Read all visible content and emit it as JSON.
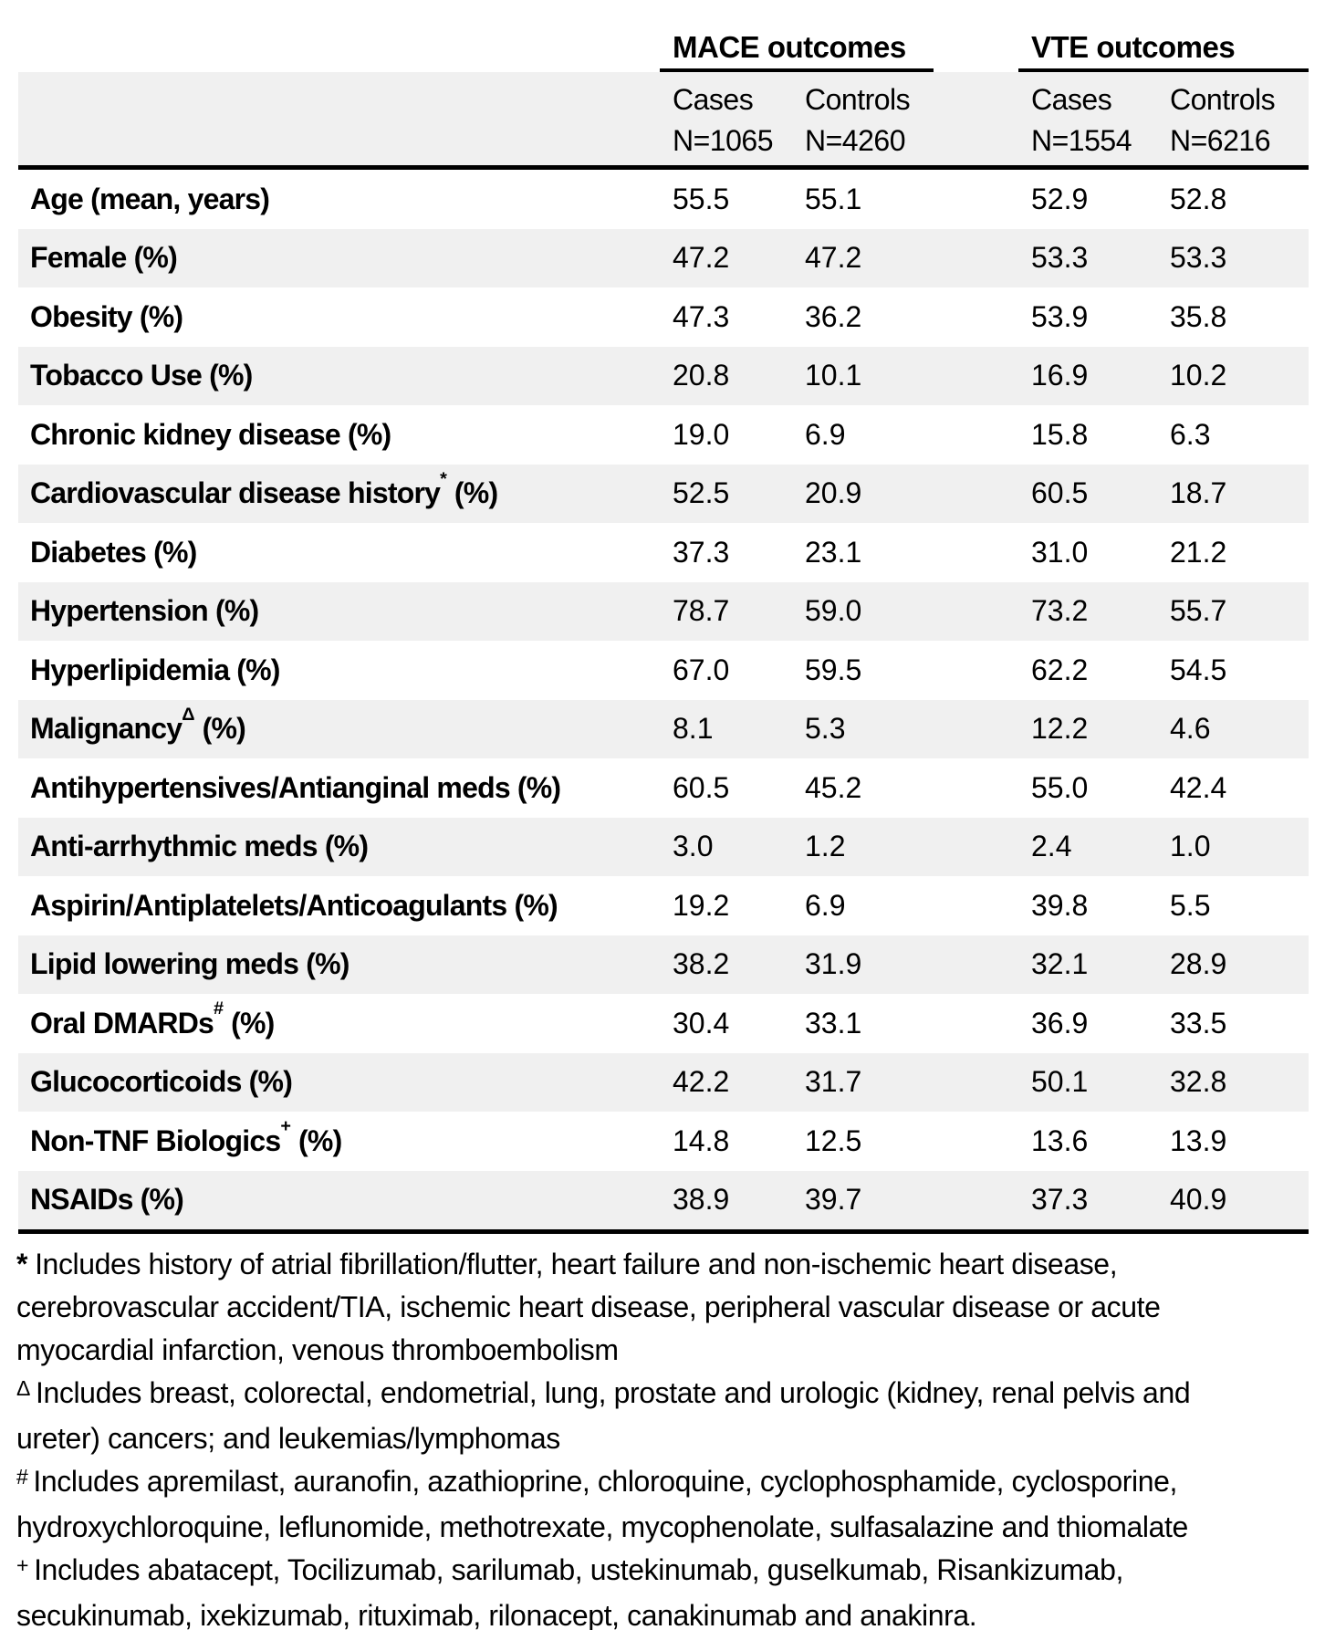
{
  "table": {
    "column_groups": [
      {
        "label": "MACE outcomes",
        "columns": [
          {
            "label": "Cases",
            "n": "N=1065"
          },
          {
            "label": "Controls",
            "n": "N=4260"
          }
        ]
      },
      {
        "label": "VTE outcomes",
        "columns": [
          {
            "label": "Cases",
            "n": "N=1554"
          },
          {
            "label": "Controls",
            "n": "N=6216"
          }
        ]
      }
    ],
    "rows": [
      {
        "label": "Age (mean, years)",
        "sup": "",
        "suffix": "",
        "values": [
          "55.5",
          "55.1",
          "52.9",
          "52.8"
        ]
      },
      {
        "label": "Female (%)",
        "sup": "",
        "suffix": "",
        "values": [
          "47.2",
          "47.2",
          "53.3",
          "53.3"
        ]
      },
      {
        "label": "Obesity (%)",
        "sup": "",
        "suffix": "",
        "values": [
          "47.3",
          "36.2",
          "53.9",
          "35.8"
        ]
      },
      {
        "label": "Tobacco Use (%)",
        "sup": "",
        "suffix": "",
        "values": [
          "20.8",
          "10.1",
          "16.9",
          "10.2"
        ]
      },
      {
        "label": "Chronic kidney disease (%)",
        "sup": "",
        "suffix": "",
        "values": [
          "19.0",
          "6.9",
          "15.8",
          "6.3"
        ]
      },
      {
        "label": "Cardiovascular disease history",
        "sup": "*",
        "suffix": " (%)",
        "values": [
          "52.5",
          "20.9",
          "60.5",
          "18.7"
        ]
      },
      {
        "label": "Diabetes (%)",
        "sup": "",
        "suffix": "",
        "values": [
          "37.3",
          "23.1",
          "31.0",
          "21.2"
        ]
      },
      {
        "label": "Hypertension (%)",
        "sup": "",
        "suffix": "",
        "values": [
          "78.7",
          "59.0",
          "73.2",
          "55.7"
        ]
      },
      {
        "label": "Hyperlipidemia (%)",
        "sup": "",
        "suffix": "",
        "values": [
          "67.0",
          "59.5",
          "62.2",
          "54.5"
        ]
      },
      {
        "label": "Malignancy",
        "sup": "Δ",
        "suffix": " (%)",
        "values": [
          "8.1",
          "5.3",
          "12.2",
          "4.6"
        ]
      },
      {
        "label": "Antihypertensives/Antianginal meds (%)",
        "sup": "",
        "suffix": "",
        "values": [
          "60.5",
          "45.2",
          "55.0",
          "42.4"
        ]
      },
      {
        "label": "Anti-arrhythmic meds (%)",
        "sup": "",
        "suffix": "",
        "values": [
          "3.0",
          "1.2",
          "2.4",
          "1.0"
        ]
      },
      {
        "label": "Aspirin/Antiplatelets/Anticoagulants (%)",
        "sup": "",
        "suffix": "",
        "values": [
          "19.2",
          "6.9",
          "39.8",
          "5.5"
        ]
      },
      {
        "label": "Lipid lowering meds (%)",
        "sup": "",
        "suffix": "",
        "values": [
          "38.2",
          "31.9",
          "32.1",
          "28.9"
        ]
      },
      {
        "label": "Oral DMARDs",
        "sup": "#",
        "suffix": " (%)",
        "values": [
          "30.4",
          "33.1",
          "36.9",
          "33.5"
        ]
      },
      {
        "label": "Glucocorticoids (%)",
        "sup": "",
        "suffix": "",
        "values": [
          "42.2",
          "31.7",
          "50.1",
          "32.8"
        ]
      },
      {
        "label": "Non-TNF Biologics",
        "sup": "+",
        "suffix": " (%)",
        "values": [
          "14.8",
          "12.5",
          "13.6",
          "13.9"
        ]
      },
      {
        "label": "NSAIDs (%)",
        "sup": "",
        "suffix": "",
        "values": [
          "38.9",
          "39.7",
          "37.3",
          "40.9"
        ]
      }
    ]
  },
  "footnotes": [
    {
      "marker": "*",
      "marker_style": "inline",
      "lines": [
        "Includes history of atrial fibrillation/flutter, heart failure and non-ischemic heart disease,",
        "cerebrovascular accident/TIA, ischemic heart disease, peripheral vascular disease or acute",
        "myocardial infarction, venous thromboembolism"
      ]
    },
    {
      "marker": "Δ",
      "marker_style": "sup",
      "lines": [
        "Includes breast, colorectal, endometrial, lung, prostate and urologic (kidney, renal pelvis and",
        "ureter) cancers; and leukemias/lymphomas"
      ]
    },
    {
      "marker": "#",
      "marker_style": "sup",
      "lines": [
        "Includes apremilast, auranofin, azathioprine, chloroquine, cyclophosphamide, cyclosporine,",
        "hydroxychloroquine, leflunomide, methotrexate, mycophenolate, sulfasalazine and thiomalate"
      ]
    },
    {
      "marker": "+",
      "marker_style": "sup",
      "lines": [
        "Includes abatacept, Tocilizumab, sarilumab, ustekinumab, guselkumab, Risankizumab,",
        "secukinumab, ixekizumab, rituximab, rilonacept, canakinumab and anakinra."
      ]
    }
  ],
  "colors": {
    "row_stripe": "#f0f0f0",
    "text": "#000000",
    "rule": "#000000"
  }
}
